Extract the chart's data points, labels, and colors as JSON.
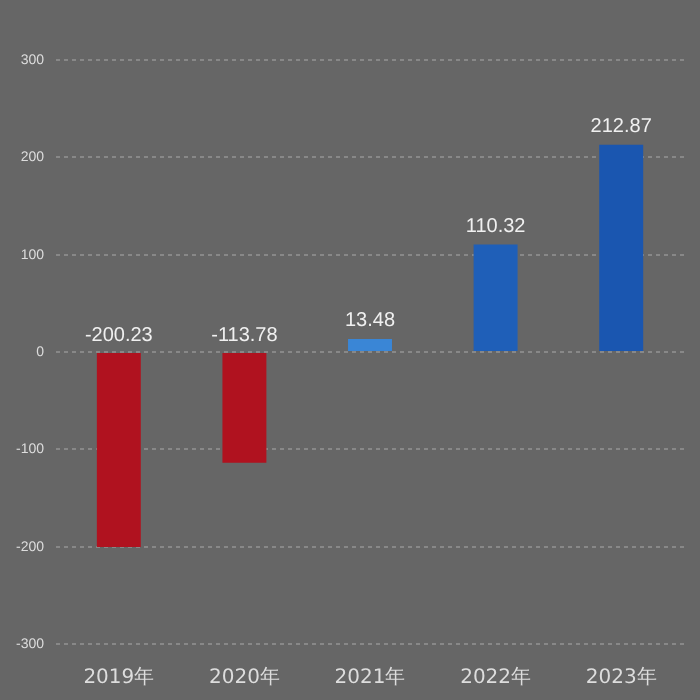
{
  "chart_data": {
    "type": "bar",
    "categories": [
      "2019年",
      "2020年",
      "2021年",
      "2022年",
      "2023年"
    ],
    "values": [
      -200.23,
      -113.78,
      13.48,
      110.32,
      212.87
    ],
    "colors": [
      "#b0121f",
      "#b0121f",
      "#3a86d6",
      "#1f5fb8",
      "#1a56b0"
    ],
    "ylim": [
      -300,
      300
    ],
    "yticks": [
      -300,
      -200,
      -100,
      0,
      100,
      200,
      300
    ],
    "grid": "y",
    "data_labels": true
  }
}
